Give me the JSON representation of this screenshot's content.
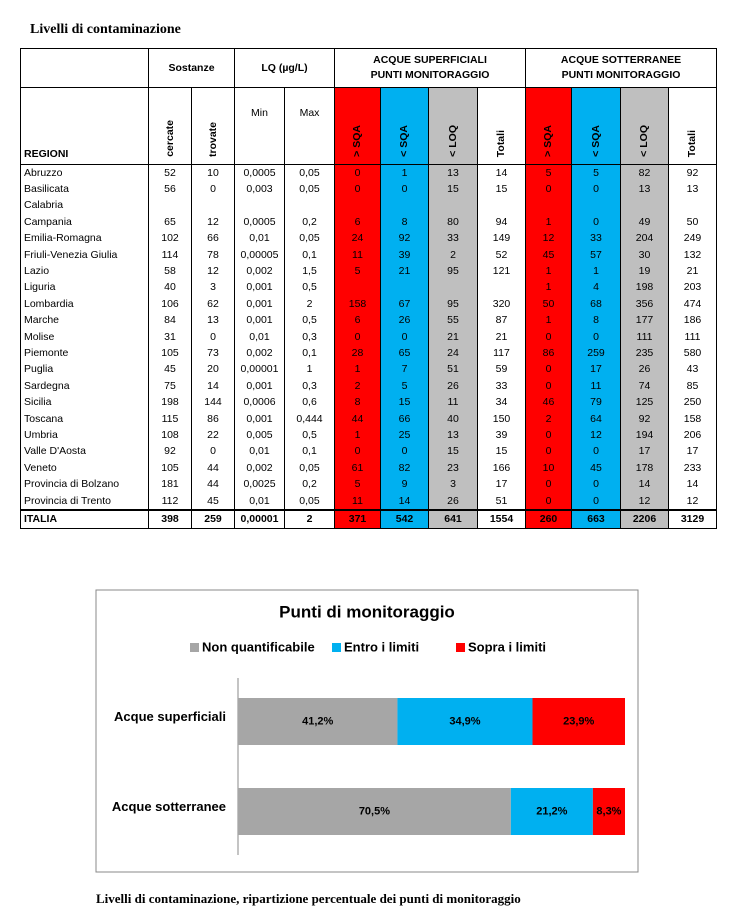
{
  "title": "Livelli di contaminazione",
  "table": {
    "header_top": [
      "Sostanze",
      "LQ (µg/L)",
      "ACQUE SUPERFICIALI\nPUNTI MONITORAGGIO",
      "ACQUE SOTTERRANEE\nPUNTI MONITORAGGIO"
    ],
    "header_sub": [
      "REGIONI",
      "cercate",
      "trovate",
      "Min",
      "Max",
      "> SQA",
      "< SQA",
      "< LOQ",
      "Totali",
      "> SQA",
      "< SQA",
      "< LOQ",
      "Totali"
    ],
    "rows": [
      [
        "Abruzzo",
        "52",
        "10",
        "0,0005",
        "0,05",
        "0",
        "1",
        "13",
        "14",
        "5",
        "5",
        "82",
        "92"
      ],
      [
        "Basilicata",
        "56",
        "0",
        "0,003",
        "0,05",
        "0",
        "0",
        "15",
        "15",
        "0",
        "0",
        "13",
        "13"
      ],
      [
        "Calabria",
        null,
        null,
        null,
        null,
        null,
        null,
        null,
        null,
        null,
        null,
        null,
        null
      ],
      [
        "Campania",
        "65",
        "12",
        "0,0005",
        "0,2",
        "6",
        "8",
        "80",
        "94",
        "1",
        "0",
        "49",
        "50"
      ],
      [
        "Emilia-Romagna",
        "102",
        "66",
        "0,01",
        "0,05",
        "24",
        "92",
        "33",
        "149",
        "12",
        "33",
        "204",
        "249"
      ],
      [
        "Friuli-Venezia Giulia",
        "114",
        "78",
        "0,00005",
        "0,1",
        "11",
        "39",
        "2",
        "52",
        "45",
        "57",
        "30",
        "132"
      ],
      [
        "Lazio",
        "58",
        "12",
        "0,002",
        "1,5",
        "5",
        "21",
        "95",
        "121",
        "1",
        "1",
        "19",
        "21"
      ],
      [
        "Liguria",
        "40",
        "3",
        "0,001",
        "0,5",
        null,
        null,
        null,
        null,
        "1",
        "4",
        "198",
        "203"
      ],
      [
        "Lombardia",
        "106",
        "62",
        "0,001",
        "2",
        "158",
        "67",
        "95",
        "320",
        "50",
        "68",
        "356",
        "474"
      ],
      [
        "Marche",
        "84",
        "13",
        "0,001",
        "0,5",
        "6",
        "26",
        "55",
        "87",
        "1",
        "8",
        "177",
        "186"
      ],
      [
        "Molise",
        "31",
        "0",
        "0,01",
        "0,3",
        "0",
        "0",
        "21",
        "21",
        "0",
        "0",
        "111",
        "111"
      ],
      [
        "Piemonte",
        "105",
        "73",
        "0,002",
        "0,1",
        "28",
        "65",
        "24",
        "117",
        "86",
        "259",
        "235",
        "580"
      ],
      [
        "Puglia",
        "45",
        "20",
        "0,00001",
        "1",
        "1",
        "7",
        "51",
        "59",
        "0",
        "17",
        "26",
        "43"
      ],
      [
        "Sardegna",
        "75",
        "14",
        "0,001",
        "0,3",
        "2",
        "5",
        "26",
        "33",
        "0",
        "11",
        "74",
        "85"
      ],
      [
        "Sicilia",
        "198",
        "144",
        "0,0006",
        "0,6",
        "8",
        "15",
        "11",
        "34",
        "46",
        "79",
        "125",
        "250"
      ],
      [
        "Toscana",
        "115",
        "86",
        "0,001",
        "0,444",
        "44",
        "66",
        "40",
        "150",
        "2",
        "64",
        "92",
        "158"
      ],
      [
        "Umbria",
        "108",
        "22",
        "0,005",
        "0,5",
        "1",
        "25",
        "13",
        "39",
        "0",
        "12",
        "194",
        "206"
      ],
      [
        "Valle D'Aosta",
        "92",
        "0",
        "0,01",
        "0,1",
        "0",
        "0",
        "15",
        "15",
        "0",
        "0",
        "17",
        "17"
      ],
      [
        "Veneto",
        "105",
        "44",
        "0,002",
        "0,05",
        "61",
        "82",
        "23",
        "166",
        "10",
        "45",
        "178",
        "233"
      ],
      [
        "Provincia di Bolzano",
        "181",
        "44",
        "0,0025",
        "0,2",
        "5",
        "9",
        "3",
        "17",
        "0",
        "0",
        "14",
        "14"
      ],
      [
        "Provincia di Trento",
        "112",
        "45",
        "0,01",
        "0,05",
        "11",
        "14",
        "26",
        "51",
        "0",
        "0",
        "12",
        "12"
      ],
      [
        "ITALIA",
        "398",
        "259",
        "0,00001",
        "2",
        "371",
        "542",
        "641",
        "1554",
        "260",
        "663",
        "2206",
        "3129"
      ]
    ]
  },
  "chart_data": {
    "type": "stacked_barh",
    "title": "Punti di monitoraggio",
    "categories": [
      "Acque superficiali",
      "Acque sotterranee"
    ],
    "series": [
      {
        "name": "Non quantificabile",
        "color": "#a6a6a6",
        "values": [
          41.2,
          70.5
        ],
        "value_labels": [
          "41,2%",
          "70,5%"
        ]
      },
      {
        "name": "Entro i limiti",
        "color": "#00b0f0",
        "values": [
          34.9,
          21.2
        ],
        "value_labels": [
          "34,9%",
          "21,2%"
        ]
      },
      {
        "name": "Sopra i limiti",
        "color": "#ff0000",
        "values": [
          23.9,
          8.3
        ],
        "value_labels": [
          "23,9%",
          "8,3%"
        ]
      }
    ]
  },
  "caption": "Livelli di contaminazione, ripartizione percentuale dei punti di monitoraggio"
}
